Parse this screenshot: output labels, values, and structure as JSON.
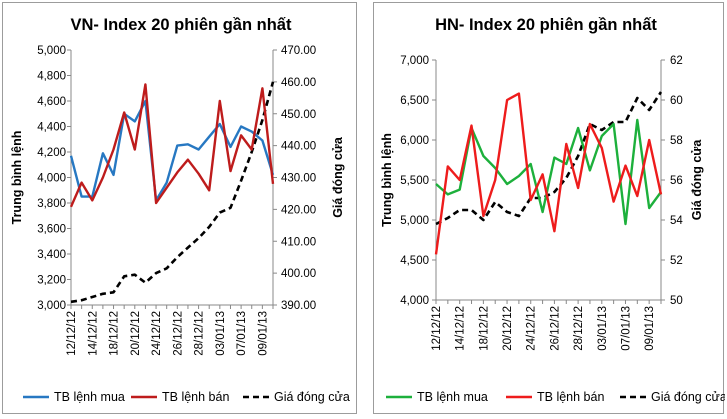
{
  "chart_data": [
    {
      "type": "line",
      "title": "VN- Index 20 phiên gần nhất",
      "ylabel": "Trung bình lệnh",
      "y2label": "Giá đóng cửa",
      "ylim": [
        3000,
        5000
      ],
      "yticks": [
        3000,
        3200,
        3400,
        3600,
        3800,
        4000,
        4200,
        4400,
        4600,
        4800,
        5000
      ],
      "ytick_labels": [
        "3,000",
        "3,200",
        "3,400",
        "3,600",
        "3,800",
        "4,000",
        "4,200",
        "4,400",
        "4,600",
        "4,800",
        "5,000"
      ],
      "y2lim": [
        390,
        470
      ],
      "y2ticks": [
        390,
        400,
        410,
        420,
        430,
        440,
        450,
        460,
        470
      ],
      "y2tick_labels": [
        "390.00",
        "400.00",
        "410.00",
        "420.00",
        "430.00",
        "440.00",
        "450.00",
        "460.00",
        "470.00"
      ],
      "x": [
        "12/12/12",
        "13/12/12",
        "14/12/12",
        "17/12/12",
        "18/12/12",
        "19/12/12",
        "20/12/12",
        "21/12/12",
        "24/12/12",
        "25/12/12",
        "26/12/12",
        "27/12/12",
        "28/12/12",
        "31/12/12",
        "03/01/13",
        "04/01/13",
        "07/01/13",
        "08/01/13",
        "09/01/13",
        "10/01/13"
      ],
      "xtick_labels": [
        "12/12/12",
        "14/12/12",
        "18/12/12",
        "20/12/12",
        "24/12/12",
        "26/12/12",
        "28/12/12",
        "03/01/13",
        "07/01/13",
        "09/01/13"
      ],
      "legend_position": "bottom",
      "grid": false,
      "series": [
        {
          "name": "TB lệnh mua",
          "axis": "left",
          "color": "#2778c2",
          "style": "solid",
          "values": [
            4170,
            3850,
            3850,
            4190,
            4020,
            4500,
            4440,
            4600,
            3820,
            3960,
            4250,
            4260,
            4220,
            4320,
            4420,
            4240,
            4400,
            4360,
            4290,
            4020
          ]
        },
        {
          "name": "TB lệnh bán",
          "axis": "left",
          "color": "#be1c1c",
          "style": "solid",
          "values": [
            3770,
            3960,
            3820,
            4000,
            4220,
            4510,
            4220,
            4730,
            3800,
            3920,
            4040,
            4140,
            4030,
            3900,
            4600,
            4050,
            4330,
            4220,
            4700,
            3950
          ]
        },
        {
          "name": "Giá đóng cửa",
          "axis": "right",
          "color": "#000000",
          "style": "dashed",
          "values": [
            391,
            391.5,
            392.5,
            393.5,
            394,
            399,
            399.5,
            397,
            400,
            401.5,
            405,
            408,
            411,
            414.5,
            419,
            420.5,
            429,
            438,
            448,
            460
          ]
        }
      ]
    },
    {
      "type": "line",
      "title": "HN- Index 20 phiên gần nhất",
      "ylabel": "Trung bình lệnh",
      "y2label": "Giá đóng cửa",
      "ylim": [
        4000,
        7000
      ],
      "yticks": [
        4000,
        4500,
        5000,
        5500,
        6000,
        6500,
        7000
      ],
      "ytick_labels": [
        "4,000",
        "4,500",
        "5,000",
        "5,500",
        "6,000",
        "6,500",
        "7,000"
      ],
      "y2lim": [
        50,
        62
      ],
      "y2ticks": [
        50,
        52,
        54,
        56,
        58,
        60,
        62
      ],
      "y2tick_labels": [
        "50",
        "52",
        "54",
        "56",
        "58",
        "60",
        "62"
      ],
      "x": [
        "12/12/12",
        "13/12/12",
        "14/12/12",
        "17/12/12",
        "18/12/12",
        "19/12/12",
        "20/12/12",
        "21/12/12",
        "24/12/12",
        "25/12/12",
        "26/12/12",
        "27/12/12",
        "28/12/12",
        "31/12/12",
        "03/01/13",
        "04/01/13",
        "07/01/13",
        "08/01/13",
        "09/01/13",
        "10/01/13"
      ],
      "xtick_labels": [
        "12/12/12",
        "14/12/12",
        "18/12/12",
        "20/12/12",
        "24/12/12",
        "26/12/12",
        "28/12/12",
        "03/01/13",
        "07/01/13",
        "09/01/13"
      ],
      "legend_position": "bottom",
      "grid": false,
      "series": [
        {
          "name": "TB lệnh mua",
          "axis": "left",
          "color": "#1db03c",
          "style": "solid",
          "values": [
            5450,
            5320,
            5380,
            6150,
            5800,
            5650,
            5450,
            5550,
            5700,
            5100,
            5780,
            5700,
            6150,
            5620,
            6050,
            6200,
            4950,
            6250,
            5150,
            5350
          ]
        },
        {
          "name": "TB lệnh bán",
          "axis": "left",
          "color": "#ee1c1c",
          "style": "solid",
          "values": [
            4570,
            5670,
            5500,
            6180,
            5050,
            5500,
            6500,
            6580,
            5250,
            5570,
            4860,
            5950,
            5400,
            6200,
            5900,
            5230,
            5680,
            5300,
            6000,
            5320
          ]
        },
        {
          "name": "Giá đóng cửa",
          "axis": "right",
          "color": "#000000",
          "style": "dashed",
          "values": [
            53.8,
            54.1,
            54.5,
            54.5,
            54,
            54.9,
            54.4,
            54.2,
            55.1,
            55.1,
            55.4,
            56.1,
            57.2,
            58.8,
            58.5,
            58.9,
            58.9,
            60.1,
            59.5,
            60.4
          ]
        }
      ]
    }
  ]
}
